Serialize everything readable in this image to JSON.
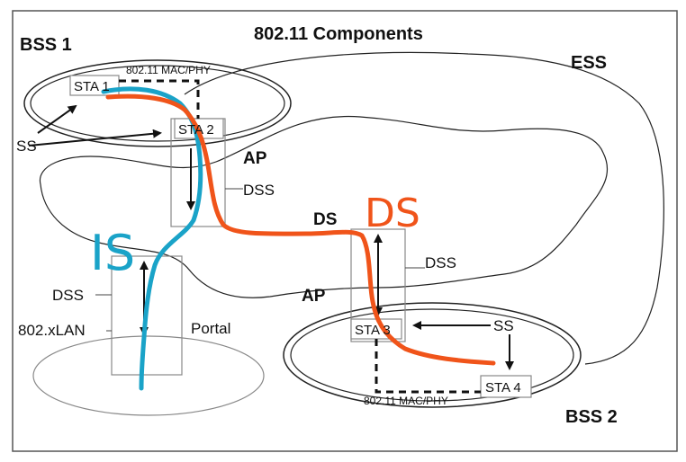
{
  "title": "802.11 Components",
  "bss1": "BSS 1",
  "bss2": "BSS 2",
  "ess": "ESS",
  "mac_phy_1": "802.11 MAC/PHY",
  "mac_phy_2": "802.11 MAC/PHY",
  "sta1": "STA 1",
  "sta2": "STA 2",
  "sta3": "STA 3",
  "sta4": "STA 4",
  "ss_left": "SS",
  "ss_right": "SS",
  "ap_top": "AP",
  "ap_bottom": "AP",
  "dss_top": "DSS",
  "dss_mid": "DSS",
  "dss_left": "DSS",
  "ds": "DS",
  "lan": "802.xLAN",
  "portal": "Portal",
  "annot_is": "IS",
  "annot_ds": "DS",
  "colors": {
    "blue_path": "#1aa3c8",
    "orange_path": "#f0541a"
  }
}
